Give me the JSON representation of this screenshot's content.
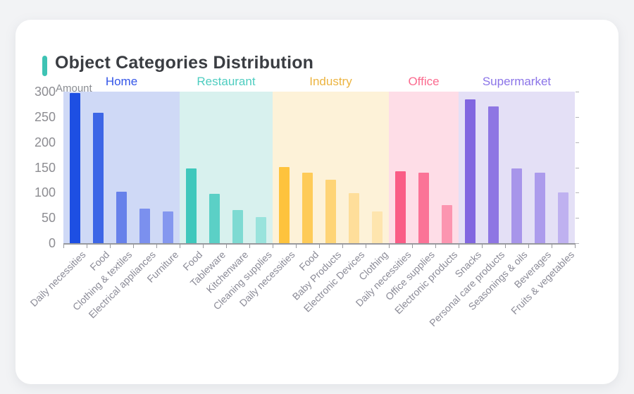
{
  "card": {
    "title": "Object Categories Distribution",
    "accent_color": "#3ec3b4"
  },
  "chart_data": {
    "type": "bar",
    "title": "Object Categories Distribution",
    "xlabel": "",
    "ylabel": "Amount",
    "ylim": [
      0,
      300
    ],
    "yticks": [
      0,
      50,
      100,
      150,
      200,
      250,
      300
    ],
    "grid": false,
    "legend_position": "none",
    "x_tick_label_rotation": 45,
    "groups": [
      {
        "name": "Home",
        "label_color": "#3355e8",
        "band_color": "#cfd9f6",
        "bars": [
          {
            "label": "Daily necessities",
            "value": 297,
            "color": "#1d4fe3"
          },
          {
            "label": "Food",
            "value": 258,
            "color": "#3d66e6"
          },
          {
            "label": "Clothing & textiles",
            "value": 102,
            "color": "#6781ea"
          },
          {
            "label": "Electrical appliances",
            "value": 69,
            "color": "#7b90ee"
          },
          {
            "label": "Furniture",
            "value": 63,
            "color": "#8497ef"
          }
        ]
      },
      {
        "name": "Restaurant",
        "label_color": "#4ecdc0",
        "band_color": "#d8f1ee",
        "bars": [
          {
            "label": "Food",
            "value": 148,
            "color": "#3fc8bc"
          },
          {
            "label": "Tableware",
            "value": 97,
            "color": "#5bd0c6"
          },
          {
            "label": "Kitchenware",
            "value": 65,
            "color": "#7edad2"
          },
          {
            "label": "Cleaning supplies",
            "value": 51,
            "color": "#99e3dc"
          }
        ]
      },
      {
        "name": "Industry",
        "label_color": "#ecb440",
        "band_color": "#fdf2d8",
        "bars": [
          {
            "label": "Daily necessities",
            "value": 150,
            "color": "#fec33d"
          },
          {
            "label": "Food",
            "value": 139,
            "color": "#fecb58"
          },
          {
            "label": "Baby Products",
            "value": 126,
            "color": "#fed476"
          },
          {
            "label": "Electronic Devices",
            "value": 99,
            "color": "#fede9a"
          },
          {
            "label": "Clothing",
            "value": 63,
            "color": "#fee5ae"
          }
        ]
      },
      {
        "name": "Office",
        "label_color": "#fb6b8f",
        "band_color": "#fedde7",
        "bars": [
          {
            "label": "Daily necessities",
            "value": 142,
            "color": "#fa5c86"
          },
          {
            "label": "Office supplies",
            "value": 139,
            "color": "#fb7397"
          },
          {
            "label": "Electronic products",
            "value": 75,
            "color": "#fc95b0"
          }
        ]
      },
      {
        "name": "Supermarket",
        "label_color": "#8b74e8",
        "band_color": "#e4e0f6",
        "bars": [
          {
            "label": "Snacks",
            "value": 285,
            "color": "#8166e0"
          },
          {
            "label": "Personal care products",
            "value": 271,
            "color": "#8e76e3"
          },
          {
            "label": "Seasonings & oils",
            "value": 148,
            "color": "#a795ea"
          },
          {
            "label": "Beverages",
            "value": 140,
            "color": "#ac9bec"
          },
          {
            "label": "Fruits & vegetables",
            "value": 101,
            "color": "#bfb1f0"
          }
        ]
      }
    ]
  }
}
